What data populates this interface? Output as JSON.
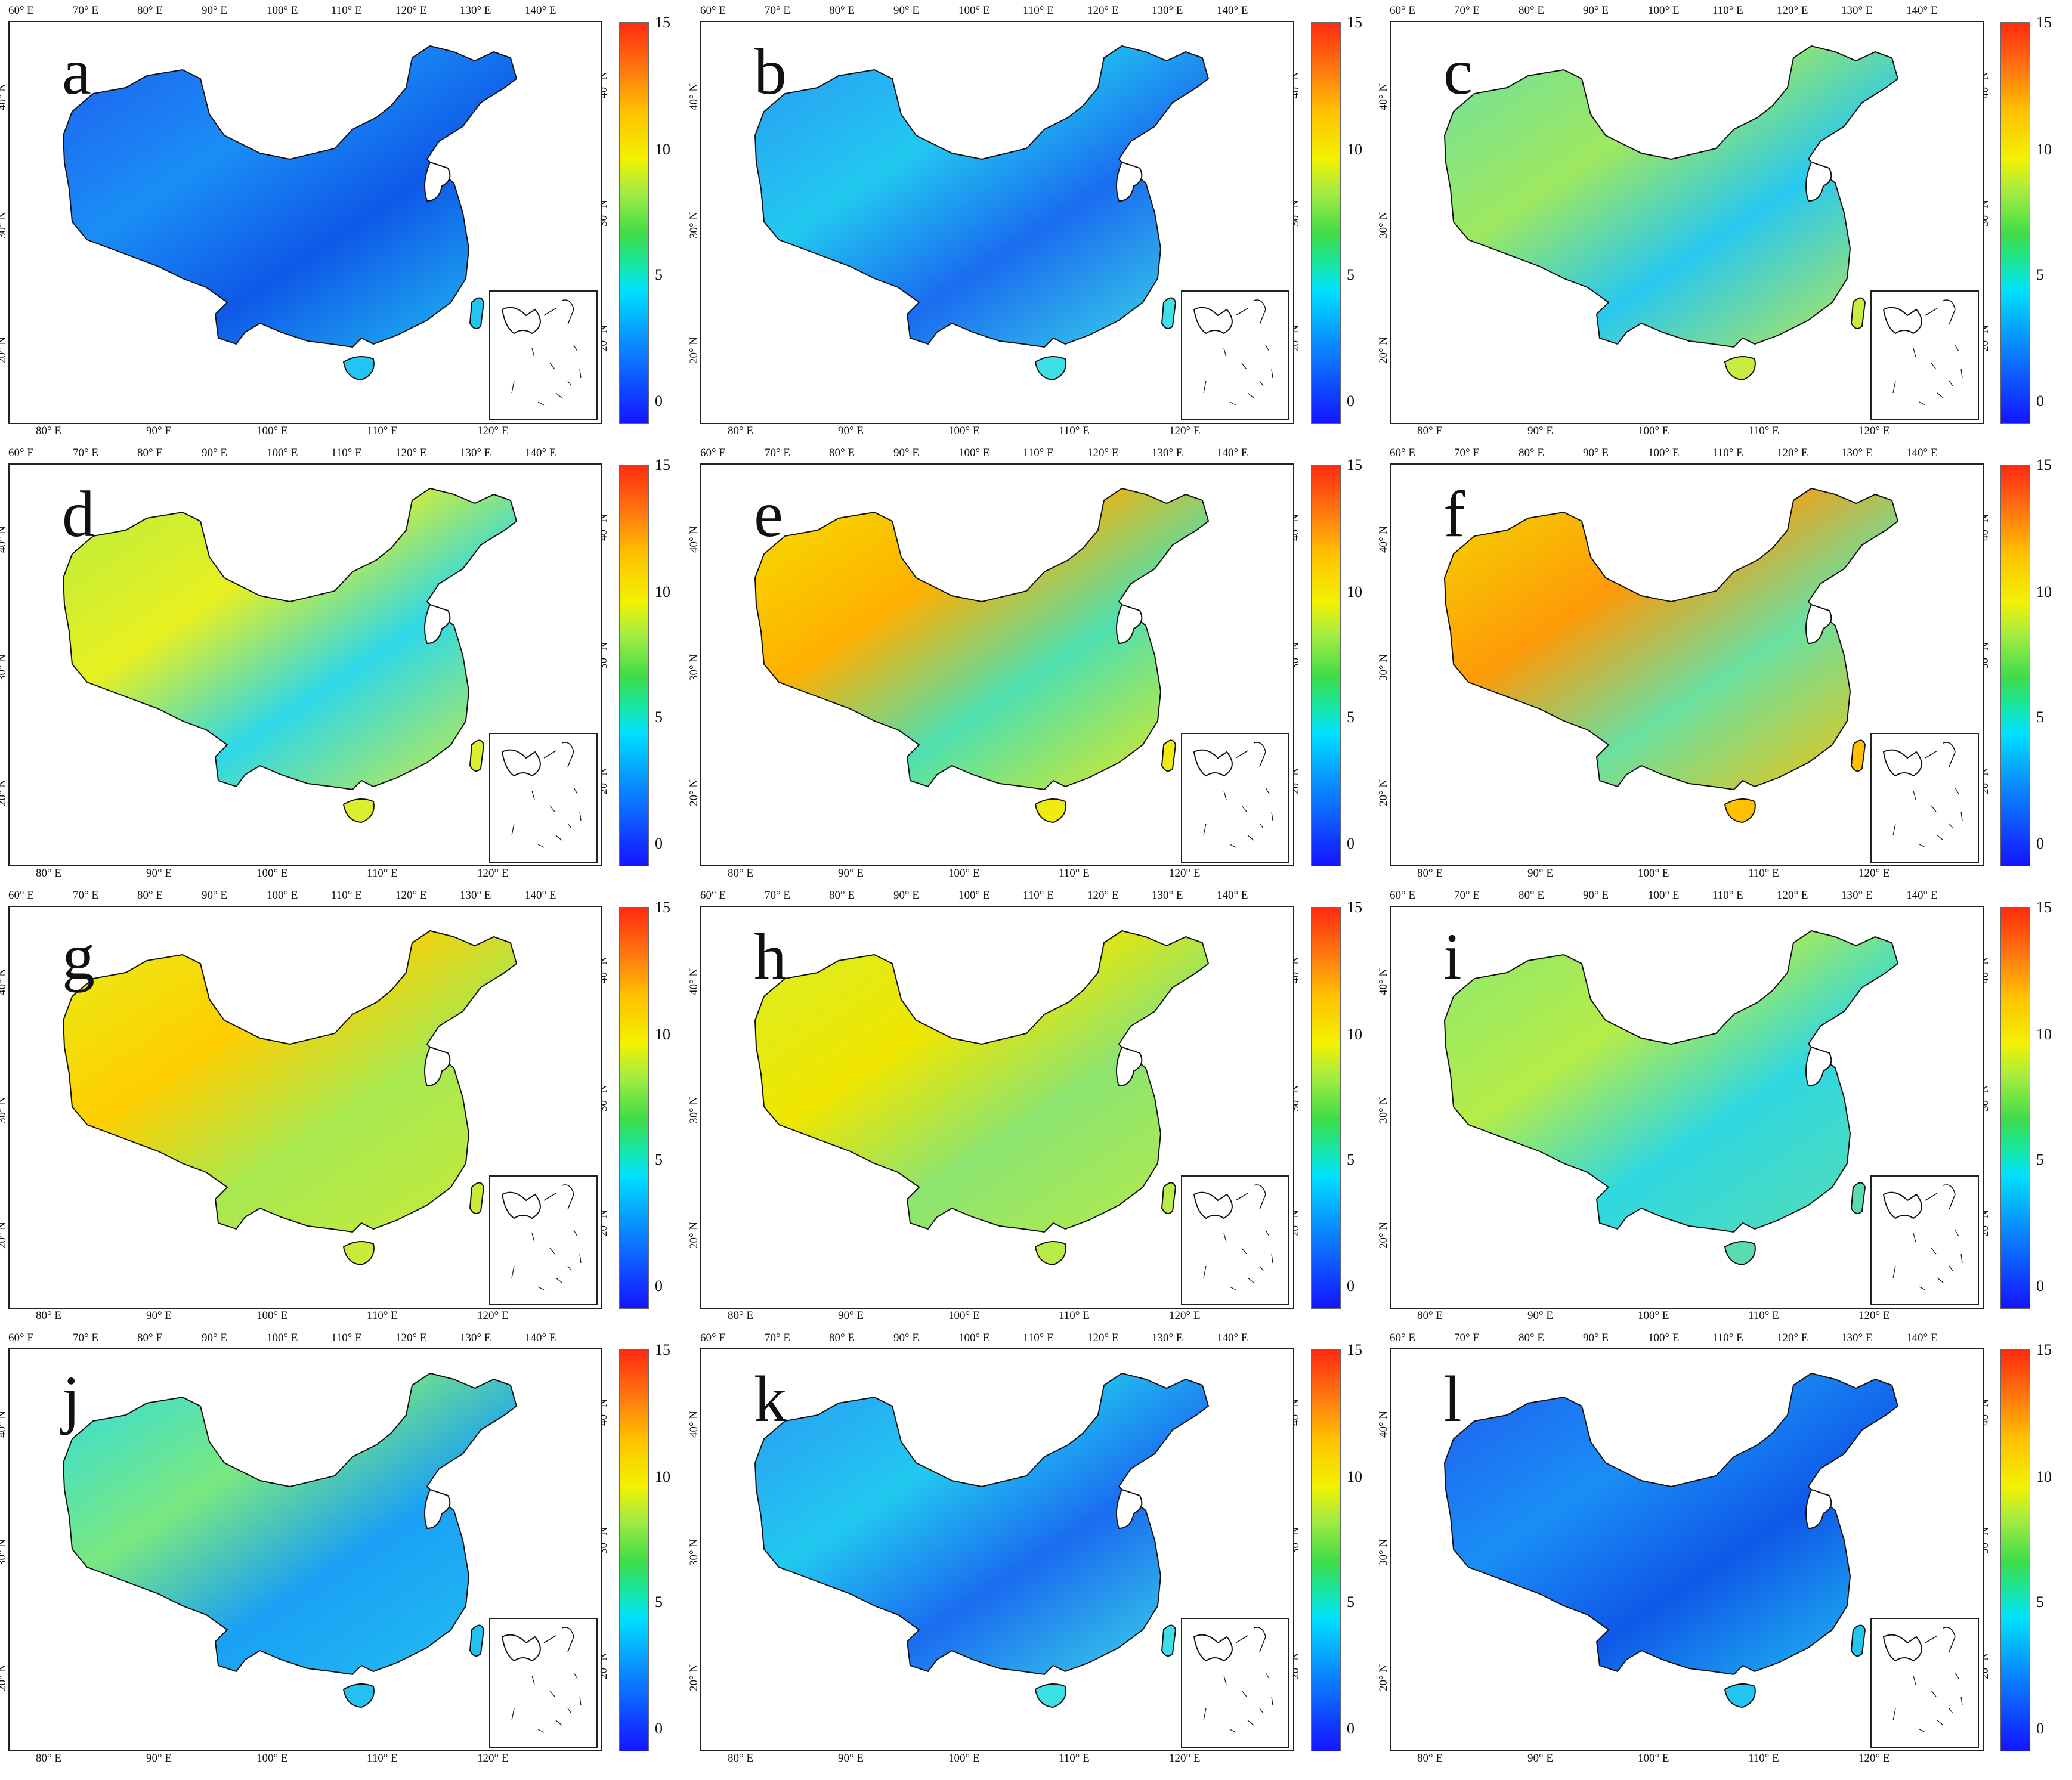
{
  "figure": {
    "panels": [
      {
        "letter": "a",
        "palette": "deep-blue"
      },
      {
        "letter": "b",
        "palette": "blue"
      },
      {
        "letter": "c",
        "palette": "cyan-green"
      },
      {
        "letter": "d",
        "palette": "green-yellow"
      },
      {
        "letter": "e",
        "palette": "yellow-orange"
      },
      {
        "letter": "f",
        "palette": "orange"
      },
      {
        "letter": "g",
        "palette": "yellow"
      },
      {
        "letter": "h",
        "palette": "yellow-green"
      },
      {
        "letter": "i",
        "palette": "green"
      },
      {
        "letter": "j",
        "palette": "cyan"
      },
      {
        "letter": "k",
        "palette": "blue"
      },
      {
        "letter": "l",
        "palette": "deep-blue"
      }
    ],
    "lon_top_ticks": [
      "60° E",
      "70° E",
      "80° E",
      "90° E",
      "100° E",
      "110° E",
      "120° E",
      "130° E",
      "140° E"
    ],
    "lon_bottom_ticks": [
      "80° E",
      "90° E",
      "100° E",
      "110° E",
      "120° E"
    ],
    "lat_ticks": [
      "40° N",
      "30° N",
      "20° N"
    ],
    "colorbar_ticks": [
      "15",
      "10",
      "5",
      "0"
    ],
    "colorbar_colors": {
      "low": "#1414ff",
      "mid": "#3ddc4a",
      "high": "#ff2a10"
    }
  }
}
